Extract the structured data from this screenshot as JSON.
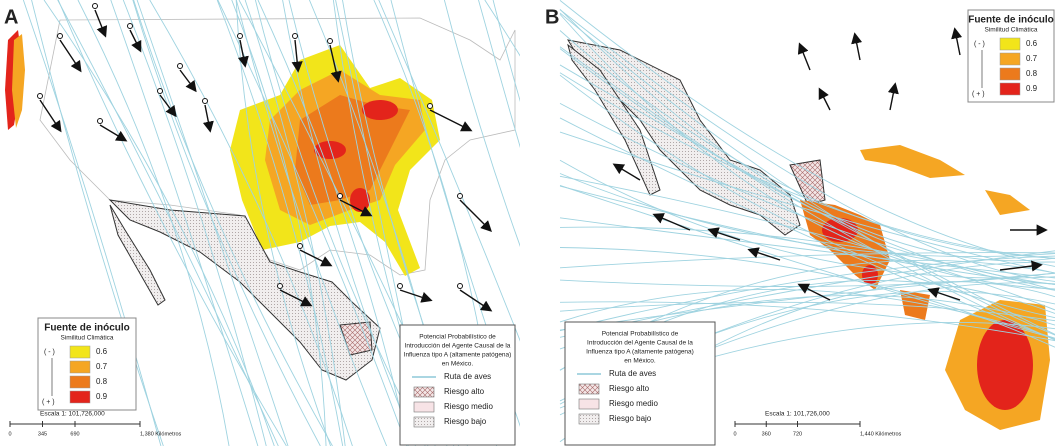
{
  "panels": [
    {
      "label": "A",
      "legend": {
        "title": "Fuente de inóculo",
        "subtitle": "Similitud Climática",
        "low": "( - )",
        "high": "( + )",
        "items": [
          "0.6",
          "0.7",
          "0.8",
          "0.9"
        ]
      },
      "info": {
        "title": [
          "Potencial Probabilístico de",
          "Introducción del Agente Causal de la",
          "Influenza tipo A (altamente patógena)",
          "en México."
        ],
        "items": [
          "Ruta de aves",
          "Riesgo alto",
          "Riesgo medio",
          "Riesgo bajo"
        ]
      },
      "scale": {
        "label": "Escala  1: 101,726,000",
        "ticks": [
          "0",
          "345",
          "690",
          "1,380 Kilómetros"
        ]
      }
    },
    {
      "label": "B",
      "legend": {
        "title": "Fuente de inóculo",
        "subtitle": "Similitud Climática",
        "low": "( - )",
        "high": "( + )",
        "items": [
          "0.6",
          "0.7",
          "0.8",
          "0.9"
        ]
      },
      "info": {
        "title": [
          "Potencial Probabilístico de",
          "Introducción del Agente Causal de la",
          "Influenza tipo A (altamente patógena)",
          "en México."
        ],
        "items": [
          "Ruta de aves",
          "Riesgo alto",
          "Riesgo medio",
          "Riesgo bajo"
        ]
      },
      "scale": {
        "label": "Escala  1: 101,726,000",
        "ticks": [
          "0",
          "360",
          "720",
          "1,440 Kilómetros"
        ]
      }
    }
  ]
}
